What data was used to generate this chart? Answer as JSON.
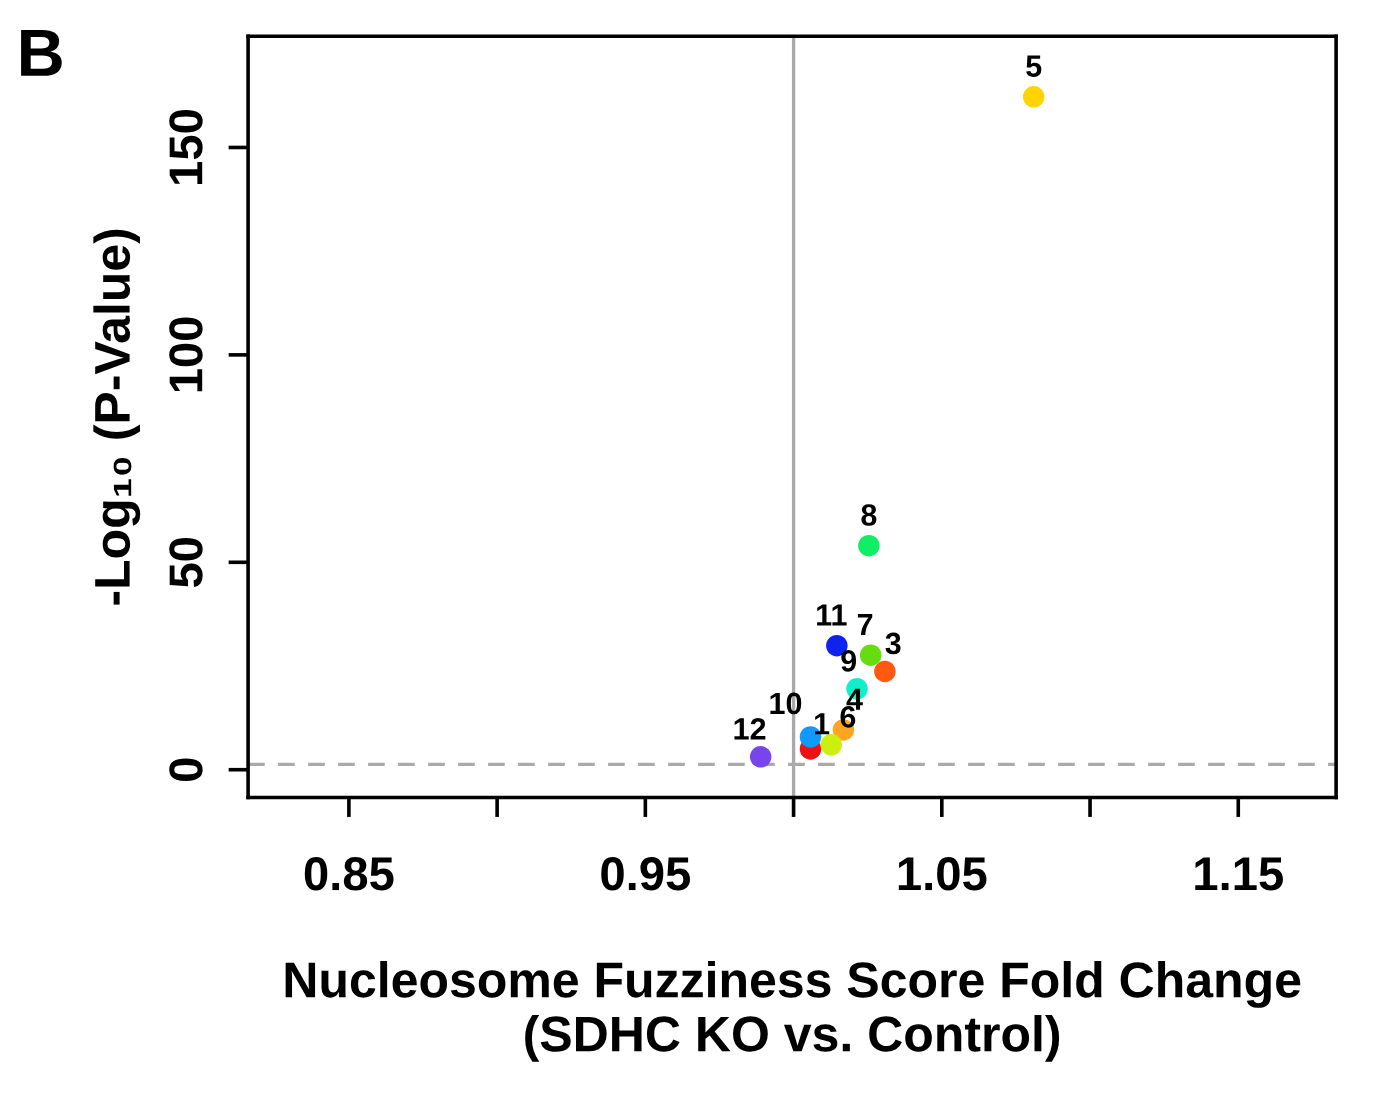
{
  "chart_data": {
    "type": "scatter",
    "xlabel": "Nucleosome Fuzziness Score Fold Change\n(SDHC KO vs. Control)",
    "ylabel": "-Log₁₀ (P-Value)",
    "x": [
      1.0057,
      1.0308,
      1.0168,
      1.081,
      1.0127,
      1.026,
      1.0254,
      1.0214,
      1.0057,
      1.0146,
      0.9889
    ],
    "series": [
      {
        "values": [
          5.0,
          23.7,
          9.6,
          162.2,
          6.0,
          27.6,
          54.0,
          19.5,
          7.9,
          29.9,
          3.1
        ],
        "colors": [
          "#ee1111",
          "#ff5a10",
          "#ffa520",
          "#ffd400",
          "#ccee10",
          "#66dd10",
          "#10ee66",
          "#10eecc",
          "#1099ff",
          "#1022ee",
          "#7744ee"
        ]
      }
    ],
    "annotations": [
      {
        "text": "1",
        "x": 1.0057,
        "y": 5.0
      },
      {
        "text": "3",
        "x": 1.0308,
        "y": 23.7
      },
      {
        "text": "4",
        "x": 1.0168,
        "y": 9.6
      },
      {
        "text": "5",
        "x": 1.081,
        "y": 162.2
      },
      {
        "text": "6",
        "x": 1.0127,
        "y": 6.0
      },
      {
        "text": "7",
        "x": 1.026,
        "y": 27.6
      },
      {
        "text": "8",
        "x": 1.0254,
        "y": 54.0
      },
      {
        "text": "9",
        "x": 1.0214,
        "y": 19.5
      },
      {
        "text": "10",
        "x": 1.0057,
        "y": 7.9
      },
      {
        "text": "11",
        "x": 1.0146,
        "y": 29.9
      },
      {
        "text": "12",
        "x": 0.9889,
        "y": 3.1
      },
      "B"
    ],
    "xlim": [
      0.816,
      1.183
    ],
    "ylim": [
      -6.7,
      176.8
    ],
    "xticks": [
      0.85,
      {
        "value": 0.9,
        "label": null
      },
      0.95,
      {
        "value": 1.0,
        "label": null
      },
      1.05,
      {
        "value": 1.1,
        "label": null
      },
      1.15
    ],
    "yticks": [
      0,
      50,
      100,
      150
    ],
    "ref_lines": [
      {
        "axis": "x",
        "value": 1.0,
        "color": "#aaaaaa",
        "line_style": "solid"
      },
      {
        "axis": "y",
        "value": 1.3,
        "color": "#aaaaaa",
        "line_style": "dashed"
      }
    ],
    "marker": "circle",
    "grid": false,
    "legend": false
  }
}
